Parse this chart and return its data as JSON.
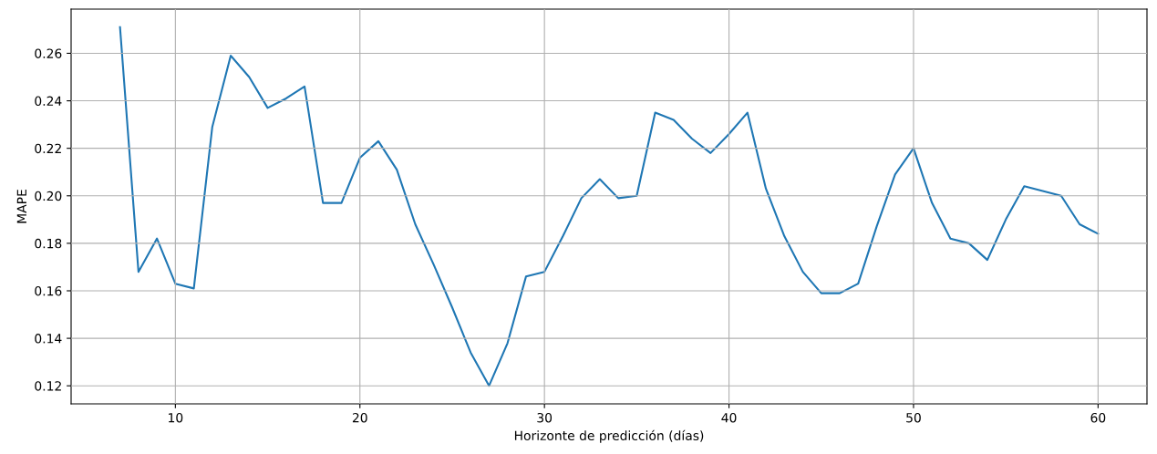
{
  "chart_data": {
    "type": "line",
    "xlabel": "Horizonte de predicción (días)",
    "ylabel": "MAPE",
    "x": [
      7,
      8,
      9,
      10,
      11,
      12,
      13,
      14,
      15,
      16,
      17,
      18,
      19,
      20,
      21,
      22,
      23,
      24,
      25,
      26,
      27,
      28,
      29,
      30,
      31,
      32,
      33,
      34,
      35,
      36,
      37,
      38,
      39,
      40,
      41,
      42,
      43,
      44,
      45,
      46,
      47,
      48,
      49,
      50,
      51,
      52,
      53,
      54,
      55,
      56,
      57,
      58,
      59,
      60
    ],
    "series": [
      {
        "color": "#1f77b4",
        "values": [
          0.271,
          0.168,
          0.182,
          0.163,
          0.161,
          0.229,
          0.259,
          0.25,
          0.237,
          0.241,
          0.246,
          0.197,
          0.197,
          0.216,
          0.223,
          0.211,
          0.188,
          0.171,
          0.153,
          0.134,
          0.12,
          0.138,
          0.166,
          0.168,
          0.183,
          0.199,
          0.207,
          0.199,
          0.2,
          0.235,
          0.232,
          0.224,
          0.218,
          0.226,
          0.235,
          0.203,
          0.183,
          0.168,
          0.159,
          0.159,
          0.163,
          0.187,
          0.209,
          0.22,
          0.197,
          0.182,
          0.18,
          0.173,
          0.19,
          0.204,
          0.202,
          0.2,
          0.188,
          0.184
        ]
      }
    ],
    "xlim": [
      4.35,
      62.65
    ],
    "ylim": [
      0.1124,
      0.2786
    ],
    "xticks": [
      10,
      20,
      30,
      40,
      50,
      60
    ],
    "yticks": [
      {
        "value": 0.12,
        "label": "0.12"
      },
      {
        "value": 0.14,
        "label": "0.14"
      },
      {
        "value": 0.16,
        "label": "0.16"
      },
      {
        "value": 0.18,
        "label": "0.18"
      },
      {
        "value": 0.2,
        "label": "0.20"
      },
      {
        "value": 0.22,
        "label": "0.22"
      },
      {
        "value": 0.24,
        "label": "0.24"
      },
      {
        "value": 0.26,
        "label": "0.26"
      }
    ],
    "grid": true
  }
}
